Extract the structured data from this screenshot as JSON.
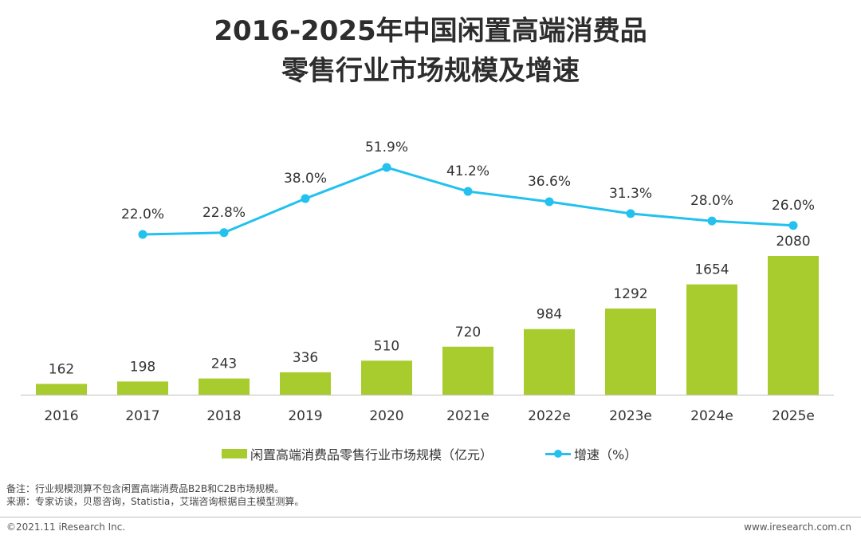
{
  "title": {
    "line1": "2016-2025年中国闲置高端消费品",
    "line2": "零售行业市场规模及增速"
  },
  "colors": {
    "bar": "#a8cc2e",
    "line": "#22c1ee",
    "axis": "#bfbfbf",
    "text": "#333333"
  },
  "chart_data": {
    "type": "bar",
    "title": "2016-2025年中国闲置高端消费品零售行业市场规模及增速",
    "categories": [
      "2016",
      "2017",
      "2018",
      "2019",
      "2020",
      "2021e",
      "2022e",
      "2023e",
      "2024e",
      "2025e"
    ],
    "series": [
      {
        "name": "闲置高端消费品零售行业市场规模（亿元）",
        "type": "bar",
        "values": [
          162,
          198,
          243,
          336,
          510,
          720,
          984,
          1292,
          1654,
          2080
        ],
        "labels": [
          "162",
          "198",
          "243",
          "336",
          "510",
          "720",
          "984",
          "1292",
          "1654",
          "2080"
        ]
      },
      {
        "name": "增速（%）",
        "type": "line",
        "values": [
          null,
          22.0,
          22.8,
          38.0,
          51.9,
          41.2,
          36.6,
          31.3,
          28.0,
          26.0
        ],
        "labels": [
          "",
          "22.0%",
          "22.8%",
          "38.0%",
          "51.9%",
          "41.2%",
          "36.6%",
          "31.3%",
          "28.0%",
          "26.0%"
        ]
      }
    ],
    "legend_position": "bottom-center",
    "grid": false
  },
  "legend": {
    "bar_label": "闲置高端消费品零售行业市场规模（亿元）",
    "line_label": "增速（%）"
  },
  "notes": {
    "note": "备注：行业规模测算不包含闲置高端消费品B2B和C2B市场规模。",
    "source": "来源：专家访谈，贝恩咨询，Statistia，艾瑞咨询根据自主模型测算。"
  },
  "footer": {
    "copyright": "©2021.11 iResearch Inc.",
    "website": "www.iresearch.com.cn"
  }
}
